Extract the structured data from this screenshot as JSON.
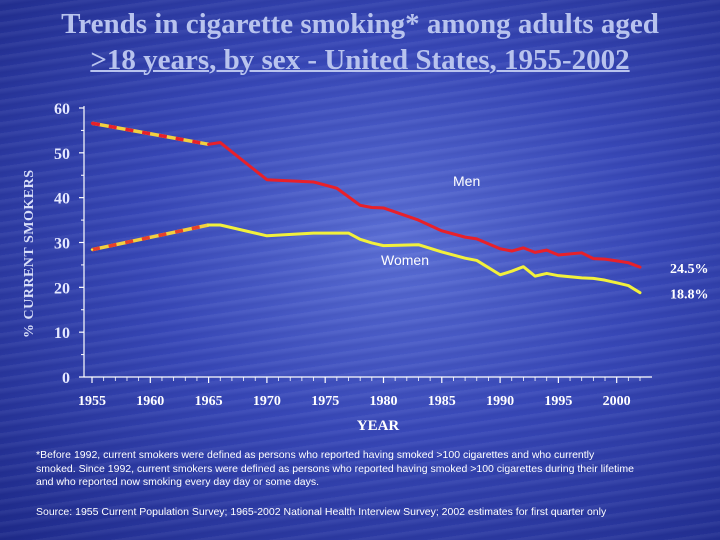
{
  "title_line1": "Trends in cigarette smoking* among adults aged",
  "title_line2": ">18 years, by sex - United States, 1955-2002",
  "footnote": "*Before 1992, current smokers were defined as persons who reported having smoked >100 cigarettes and who currently smoked. Since 1992, current smokers were defined as persons who reported having smoked >100 cigarettes during their lifetime and who reported now smoking every day day or some days.",
  "source": "Source: 1955 Current Population Survey; 1965-2002 National Health Interview Survey; 2002 estimates for first quarter only",
  "chart_data": {
    "type": "line",
    "title": "Trends in cigarette smoking* among adults aged >18 years, by sex - United States, 1955-2002",
    "xlabel": "YEAR",
    "ylabel": "% CURRENT SMOKERS",
    "xlim": [
      1955,
      2002
    ],
    "ylim": [
      0,
      60
    ],
    "xticks": [
      "1955",
      "1960",
      "1965",
      "1970",
      "1975",
      "1980",
      "1985",
      "1990",
      "1995",
      "2000"
    ],
    "yticks": [
      "0",
      "10",
      "20",
      "30",
      "40",
      "50",
      "60"
    ],
    "grid": false,
    "colors": {
      "men": "#e8202a",
      "women": "#f2f03c",
      "interpolated": "#f2d040",
      "axis": "#ffffff"
    },
    "series": [
      {
        "name": "Men",
        "end_label": "24.5%",
        "dashed_until": 1965,
        "x": [
          1955,
          1965,
          1966,
          1970,
          1974,
          1976,
          1978,
          1979,
          1980,
          1983,
          1985,
          1987,
          1988,
          1990,
          1991,
          1992,
          1993,
          1994,
          1995,
          1997,
          1998,
          1999,
          2000,
          2001,
          2002
        ],
        "values": [
          56.6,
          51.9,
          52.3,
          44.0,
          43.5,
          42.1,
          38.3,
          37.8,
          37.7,
          35.0,
          32.6,
          31.2,
          30.8,
          28.6,
          28.1,
          28.8,
          27.8,
          28.3,
          27.2,
          27.7,
          26.4,
          26.3,
          25.9,
          25.5,
          24.5
        ]
      },
      {
        "name": "Women",
        "end_label": "18.8%",
        "dashed_until": 1965,
        "x": [
          1955,
          1965,
          1966,
          1970,
          1974,
          1977,
          1978,
          1979,
          1980,
          1983,
          1985,
          1987,
          1988,
          1990,
          1991,
          1992,
          1993,
          1994,
          1995,
          1997,
          1998,
          1999,
          2000,
          2001,
          2002
        ],
        "values": [
          28.4,
          33.9,
          33.9,
          31.5,
          32.1,
          32.1,
          30.7,
          29.9,
          29.3,
          29.5,
          27.9,
          26.5,
          26.0,
          22.8,
          23.6,
          24.6,
          22.5,
          23.1,
          22.6,
          22.1,
          22.0,
          21.6,
          21.0,
          20.4,
          18.8
        ]
      }
    ]
  }
}
